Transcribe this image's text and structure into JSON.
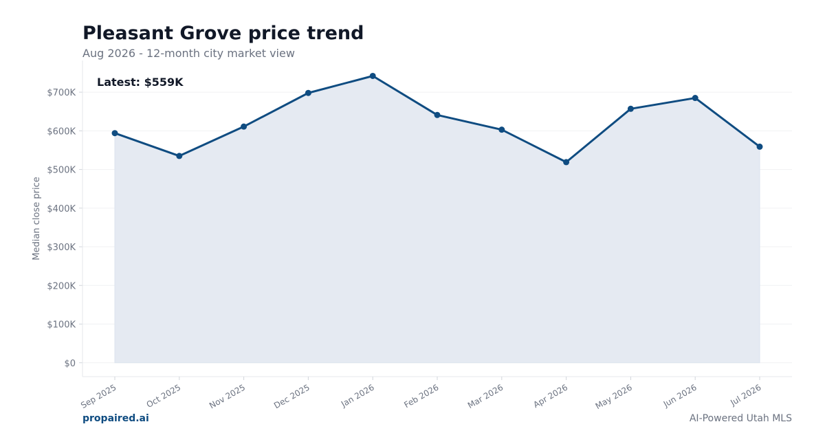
{
  "header": {
    "title": "Pleasant Grove price trend",
    "subtitle": "Aug 2026 - 12-month city market view"
  },
  "footer": {
    "brand": "propaired.ai",
    "tagline": "AI-Powered Utah MLS"
  },
  "colors": {
    "line": "#0f4c81",
    "area": "#e5eaf2",
    "title": "#111827",
    "muted": "#6b7280"
  },
  "chart_data": {
    "type": "area",
    "title": "Pleasant Grove price trend",
    "subtitle": "Aug 2026 - 12-month city market view",
    "xlabel": "",
    "ylabel": "Median close price",
    "categories": [
      "Sep 2025",
      "Oct 2025",
      "Nov 2025",
      "Dec 2025",
      "Jan 2026",
      "Feb 2026",
      "Mar 2026",
      "Apr 2026",
      "May 2026",
      "Jun 2026",
      "Jul 2026"
    ],
    "values": [
      594000,
      535000,
      611000,
      698000,
      742000,
      641000,
      603000,
      519000,
      657000,
      685000,
      559000
    ],
    "yticks": [
      0,
      100000,
      200000,
      300000,
      400000,
      500000,
      600000,
      700000
    ],
    "ytick_labels": [
      "$0",
      "$100K",
      "$200K",
      "$300K",
      "$400K",
      "$500K",
      "$600K",
      "$700K"
    ],
    "ylim": [
      -36000,
      782000
    ],
    "grid": true,
    "annotation": "Latest: $559K",
    "markers": true
  }
}
